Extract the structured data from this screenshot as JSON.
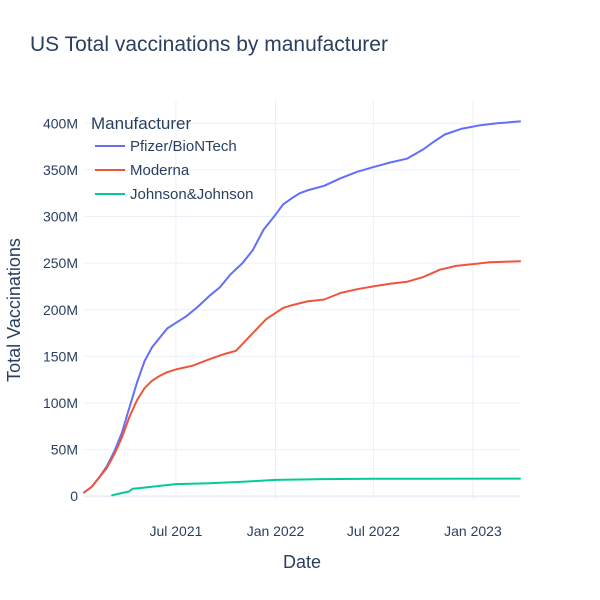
{
  "chart_data": {
    "type": "line",
    "title": "US Total vaccinations by manufacturer",
    "xlabel": "Date",
    "ylabel": "Total Vaccinations",
    "legend_title": "Manufacturer",
    "legend_position": "top-left",
    "grid": true,
    "xlim": [
      "2021-01-12",
      "2023-03-29"
    ],
    "ylim": [
      -3,
      425
    ],
    "y_unit": "millions",
    "x_ticks": [
      {
        "date": "2021-07-01",
        "label": "Jul 2021"
      },
      {
        "date": "2022-01-01",
        "label": "Jan 2022"
      },
      {
        "date": "2022-07-01",
        "label": "Jul 2022"
      },
      {
        "date": "2023-01-01",
        "label": "Jan 2023"
      }
    ],
    "y_ticks": [
      {
        "value": 0,
        "label": "0"
      },
      {
        "value": 50,
        "label": "50M"
      },
      {
        "value": 100,
        "label": "100M"
      },
      {
        "value": 150,
        "label": "150M"
      },
      {
        "value": 200,
        "label": "200M"
      },
      {
        "value": 250,
        "label": "250M"
      },
      {
        "value": 300,
        "label": "300M"
      },
      {
        "value": 350,
        "label": "350M"
      },
      {
        "value": 400,
        "label": "400M"
      }
    ],
    "series": [
      {
        "name": "Pfizer/BioNTech",
        "color": "#636efa",
        "points": [
          [
            "2021-01-12",
            4
          ],
          [
            "2021-01-26",
            10
          ],
          [
            "2021-02-09",
            20
          ],
          [
            "2021-02-23",
            32
          ],
          [
            "2021-03-09",
            48
          ],
          [
            "2021-03-23",
            68
          ],
          [
            "2021-04-06",
            95
          ],
          [
            "2021-04-20",
            122
          ],
          [
            "2021-05-04",
            145
          ],
          [
            "2021-05-18",
            160
          ],
          [
            "2021-06-01",
            170
          ],
          [
            "2021-06-15",
            180
          ],
          [
            "2021-07-01",
            186
          ],
          [
            "2021-07-20",
            193
          ],
          [
            "2021-08-10",
            203
          ],
          [
            "2021-09-01",
            215
          ],
          [
            "2021-09-20",
            224
          ],
          [
            "2021-10-10",
            238
          ],
          [
            "2021-11-01",
            250
          ],
          [
            "2021-11-20",
            264
          ],
          [
            "2021-12-10",
            286
          ],
          [
            "2022-01-01",
            302
          ],
          [
            "2022-01-15",
            313
          ],
          [
            "2022-02-01",
            320
          ],
          [
            "2022-02-15",
            325
          ],
          [
            "2022-03-01",
            328
          ],
          [
            "2022-04-01",
            333
          ],
          [
            "2022-05-01",
            341
          ],
          [
            "2022-06-01",
            348
          ],
          [
            "2022-07-01",
            353
          ],
          [
            "2022-08-01",
            358
          ],
          [
            "2022-09-01",
            362
          ],
          [
            "2022-10-01",
            372
          ],
          [
            "2022-10-20",
            380
          ],
          [
            "2022-11-10",
            388
          ],
          [
            "2022-12-10",
            394
          ],
          [
            "2023-01-15",
            398
          ],
          [
            "2023-02-15",
            400
          ],
          [
            "2023-03-29",
            402
          ]
        ]
      },
      {
        "name": "Moderna",
        "color": "#ef553b",
        "points": [
          [
            "2021-01-12",
            4
          ],
          [
            "2021-01-26",
            10
          ],
          [
            "2021-02-09",
            20
          ],
          [
            "2021-02-23",
            30
          ],
          [
            "2021-03-09",
            45
          ],
          [
            "2021-03-23",
            63
          ],
          [
            "2021-04-06",
            85
          ],
          [
            "2021-04-20",
            103
          ],
          [
            "2021-05-04",
            116
          ],
          [
            "2021-05-18",
            124
          ],
          [
            "2021-06-01",
            129
          ],
          [
            "2021-06-15",
            133
          ],
          [
            "2021-07-01",
            136
          ],
          [
            "2021-08-01",
            140
          ],
          [
            "2021-09-01",
            147
          ],
          [
            "2021-10-01",
            153
          ],
          [
            "2021-10-20",
            156
          ],
          [
            "2021-11-15",
            172
          ],
          [
            "2021-12-15",
            190
          ],
          [
            "2022-01-15",
            202
          ],
          [
            "2022-02-01",
            205
          ],
          [
            "2022-03-01",
            209
          ],
          [
            "2022-04-01",
            211
          ],
          [
            "2022-05-01",
            218
          ],
          [
            "2022-06-01",
            222
          ],
          [
            "2022-07-01",
            225
          ],
          [
            "2022-08-01",
            228
          ],
          [
            "2022-09-01",
            230
          ],
          [
            "2022-10-01",
            235
          ],
          [
            "2022-11-01",
            243
          ],
          [
            "2022-12-01",
            247
          ],
          [
            "2023-01-01",
            249
          ],
          [
            "2023-02-01",
            251
          ],
          [
            "2023-03-29",
            252
          ]
        ]
      },
      {
        "name": "Johnson&Johnson",
        "color": "#00cc96",
        "points": [
          [
            "2021-03-05",
            1
          ],
          [
            "2021-03-20",
            3
          ],
          [
            "2021-04-05",
            5
          ],
          [
            "2021-04-12",
            8
          ],
          [
            "2021-05-01",
            9
          ],
          [
            "2021-06-01",
            11
          ],
          [
            "2021-07-01",
            13
          ],
          [
            "2021-09-01",
            14
          ],
          [
            "2021-11-01",
            15.5
          ],
          [
            "2022-01-01",
            17.5
          ],
          [
            "2022-04-01",
            18.3
          ],
          [
            "2022-07-01",
            18.7
          ],
          [
            "2022-10-01",
            18.8
          ],
          [
            "2023-03-29",
            18.9
          ]
        ]
      }
    ]
  }
}
